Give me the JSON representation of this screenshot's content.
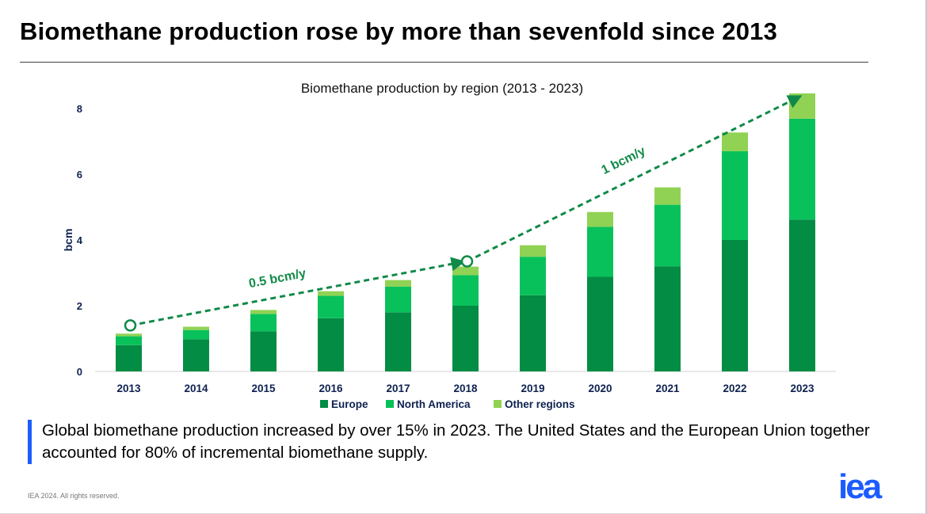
{
  "headline": "Biomethane production rose by more than sevenfold since 2013",
  "callout_text": "Global biomethane production increased by over 15% in 2023. The United States and the European Union together accounted for 80% of incremental biomethane supply.",
  "footer": "IEA 2024. All rights reserved.",
  "logo_text": "iea",
  "colors": {
    "europe": "#038c44",
    "north_america": "#09c15a",
    "other": "#90d254",
    "trend": "#118a48",
    "axis_text": "#0e2150",
    "accent_bar": "#1c5cff",
    "logo": "#1c5cff"
  },
  "chart_data": {
    "type": "bar",
    "stacked": true,
    "title": "Biomethane production by region (2013 - 2023)",
    "xlabel": "",
    "ylabel": "bcm",
    "ylim": [
      0,
      8
    ],
    "yticks": [
      0,
      2,
      4,
      6,
      8
    ],
    "grid": false,
    "legend_position": "bottom",
    "categories": [
      "2013",
      "2014",
      "2015",
      "2016",
      "2017",
      "2018",
      "2019",
      "2020",
      "2021",
      "2022",
      "2023"
    ],
    "series": [
      {
        "name": "Europe",
        "values": [
          0.8,
          0.98,
          1.22,
          1.62,
          1.8,
          2.0,
          2.32,
          2.88,
          3.2,
          4.0,
          4.62
        ]
      },
      {
        "name": "North America",
        "values": [
          0.27,
          0.28,
          0.53,
          0.68,
          0.78,
          0.93,
          1.17,
          1.52,
          1.87,
          2.7,
          3.07
        ]
      },
      {
        "name": "Other regions",
        "values": [
          0.08,
          0.1,
          0.12,
          0.14,
          0.2,
          0.26,
          0.35,
          0.45,
          0.53,
          0.57,
          0.77
        ]
      }
    ],
    "annotations": [
      {
        "label": "0.5 bcm/y",
        "from": {
          "x": "2013",
          "y": 1.4
        },
        "to": {
          "x": "2018",
          "y": 3.35
        }
      },
      {
        "label": "1 bcm/y",
        "from": {
          "x": "2018",
          "y": 3.35
        },
        "to": {
          "x": "2023",
          "y": 8.4
        }
      }
    ]
  }
}
